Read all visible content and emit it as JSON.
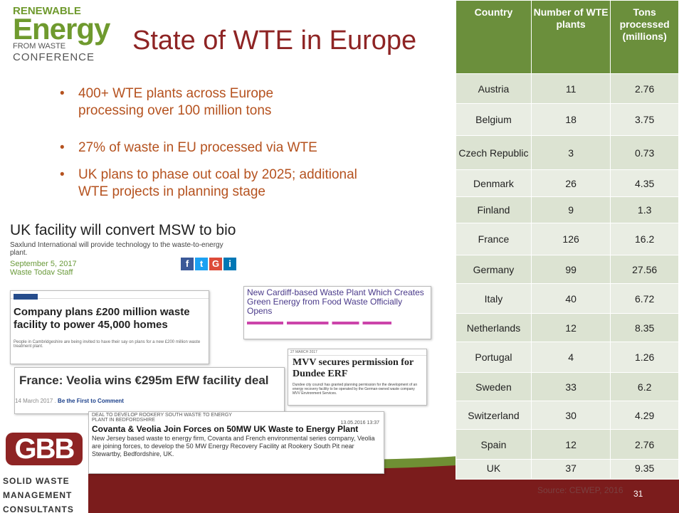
{
  "logo": {
    "line1": "RENEWABLE",
    "line2": "Energy",
    "line3": "FROM WASTE",
    "line4": "CONFERENCE"
  },
  "title": "State of WTE in Europe",
  "bullets": [
    "400+ WTE plants across Europe processing over 100 million tons",
    "27% of waste in EU processed via WTE",
    "UK plans to phase out coal by 2025; additional WTE projects in planning stage"
  ],
  "clippings": [
    {
      "headline": "UK facility will convert MSW to biogas",
      "summary": "Saxlund International will provide technology to the waste-to-energy plant.",
      "date": "September 5, 2017",
      "author": "Waste Today Staff"
    },
    {
      "headline": "Company plans £200 million waste facility to power 45,000 homes",
      "summary": "People in Cambridgeshire are being invited to have their say on plans for a new £200 million waste treatment plant."
    },
    {
      "headline": "New Cardiff-based Waste Plant Which Creates Green Energy from Food Waste Officially Opens"
    },
    {
      "headline": "France: Veolia wins €295m EfW facility deal",
      "date": "14 March 2017",
      "author": "Be the First to Comment"
    },
    {
      "date": "27 MARCH 2017",
      "headline": "MVV secures permission for Dundee ERF",
      "summary": "Dundee city council has granted planning permission for the development of an energy recovery facility to be operated by the German-owned waste company MVV Environment Services."
    },
    {
      "kicker": "DEAL TO DEVELOP ROOKERY SOUTH WASTE TO ENERGY PLANT IN BEDFORDSHIRE",
      "date": "13.05.2016 13:37",
      "headline": "Covanta & Veolia Join Forces on 50MW UK Waste to Energy Plant",
      "summary": "New Jersey based waste to energy firm, Covanta and French environmental series company, Veolia are joining forces, to develop the 50 MW Energy Recovery Facility at Rookery South Pit near Stewartby, Bedfordshire, UK."
    }
  ],
  "table": {
    "headers": [
      "Country",
      "Number of WTE plants",
      "Tons processed (millions)"
    ],
    "rows": [
      [
        "Austria",
        "11",
        "2.76"
      ],
      [
        "Belgium",
        "18",
        "3.75"
      ],
      [
        "Czech Republic",
        "3",
        "0.73"
      ],
      [
        "Denmark",
        "26",
        "4.35"
      ],
      [
        "Finland",
        "9",
        "1.3"
      ],
      [
        "France",
        "126",
        "16.2"
      ],
      [
        "Germany",
        "99",
        "27.56"
      ],
      [
        "Italy",
        "40",
        "6.72"
      ],
      [
        "Netherlands",
        "12",
        "8.35"
      ],
      [
        "Portugal",
        "4",
        "1.26"
      ],
      [
        "Sweden",
        "33",
        "6.2"
      ],
      [
        "Switzerland",
        "30",
        "4.29"
      ],
      [
        "Spain",
        "12",
        "2.76"
      ],
      [
        "UK",
        "37",
        "9.35"
      ]
    ]
  },
  "source": "Source: CEWEP, 2016",
  "page_number": "31",
  "footer_logo": {
    "mark": "GBB",
    "lines": [
      "SOLID WASTE",
      "MANAGEMENT",
      "CONSULTANTS"
    ]
  }
}
